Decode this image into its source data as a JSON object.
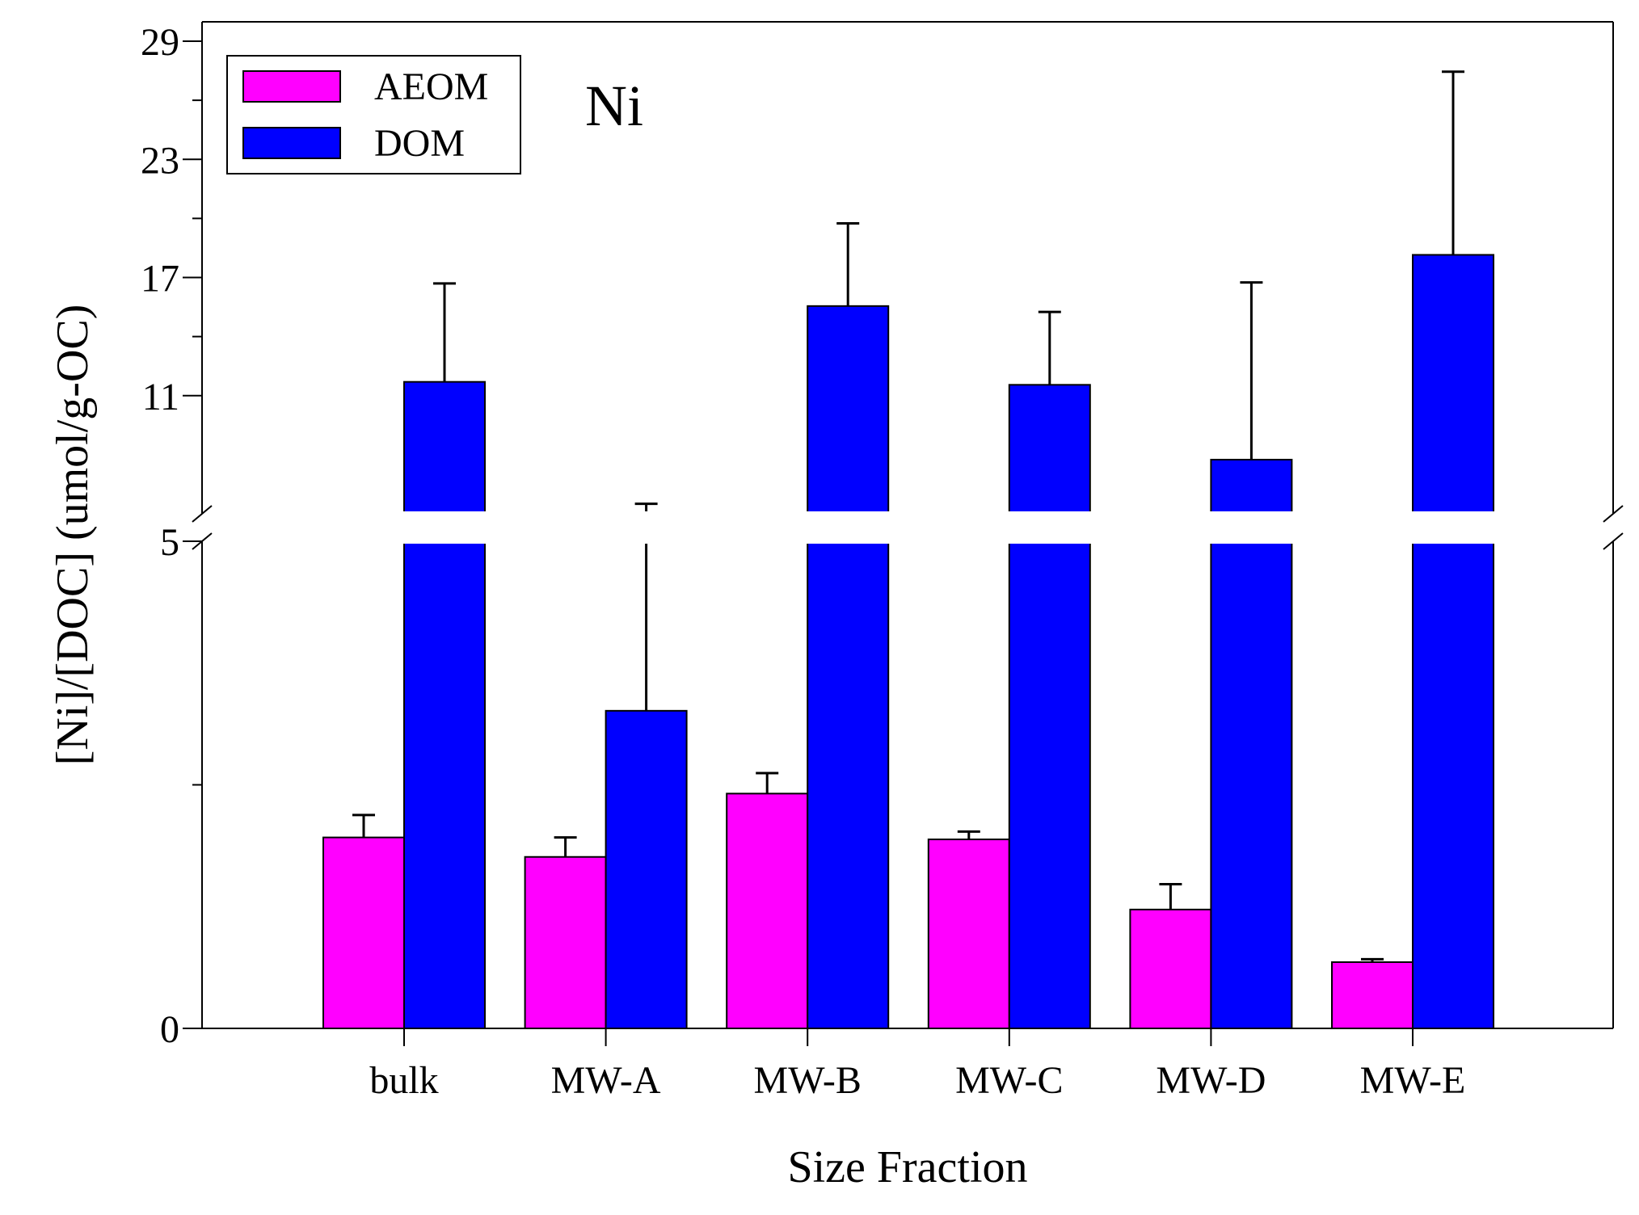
{
  "chart_data": {
    "type": "bar",
    "title": "Ni",
    "xlabel": "Size Fraction",
    "ylabel": "[Ni]/[DOC] (umol/g-OC)",
    "categories": [
      "bulk",
      "MW-A",
      "MW-B",
      "MW-C",
      "MW-D",
      "MW-E"
    ],
    "series": [
      {
        "name": "AEOM",
        "color": "#ff00ff",
        "values": [
          1.96,
          1.76,
          2.41,
          1.94,
          1.22,
          0.68
        ],
        "errors": [
          0.23,
          0.2,
          0.21,
          0.08,
          0.26,
          0.03
        ]
      },
      {
        "name": "DOM",
        "color": "#0000ff",
        "values": [
          11.7,
          3.26,
          15.55,
          11.55,
          7.75,
          18.15
        ],
        "errors": [
          5.0,
          2.25,
          4.2,
          3.7,
          9.0,
          9.3
        ]
      }
    ],
    "axis_break": {
      "lower_range": [
        0,
        5
      ],
      "upper_range": [
        5,
        29
      ]
    },
    "y_ticks_upper": [
      "11",
      "17",
      "23",
      "29"
    ],
    "y_ticks_lower": [
      "0",
      "5"
    ],
    "legend_position": "top-left",
    "grid": false
  }
}
